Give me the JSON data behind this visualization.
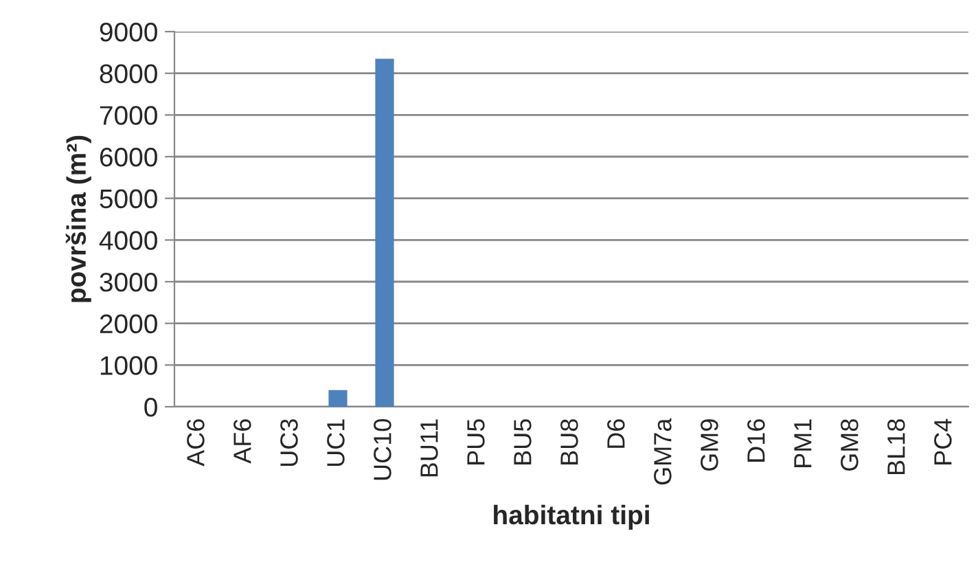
{
  "chart_data": {
    "type": "bar",
    "xlabel": "habitatni tipi",
    "ylabel": "površina (m²)",
    "categories": [
      "AC6",
      "AF6",
      "UC3",
      "UC1",
      "UC10",
      "BU11",
      "PU5",
      "BU5",
      "BU8",
      "D6",
      "GM7a",
      "GM9",
      "D16",
      "PM1",
      "GM8",
      "BL18",
      "PC4"
    ],
    "values": [
      0,
      0,
      0,
      400,
      8350,
      0,
      0,
      0,
      0,
      0,
      0,
      0,
      0,
      0,
      0,
      0,
      0
    ],
    "color": "#4f81bd",
    "ylim": [
      0,
      9000
    ],
    "yticks": [
      0,
      1000,
      2000,
      3000,
      4000,
      5000,
      6000,
      7000,
      8000,
      9000
    ],
    "grid": "y",
    "legend": false
  }
}
